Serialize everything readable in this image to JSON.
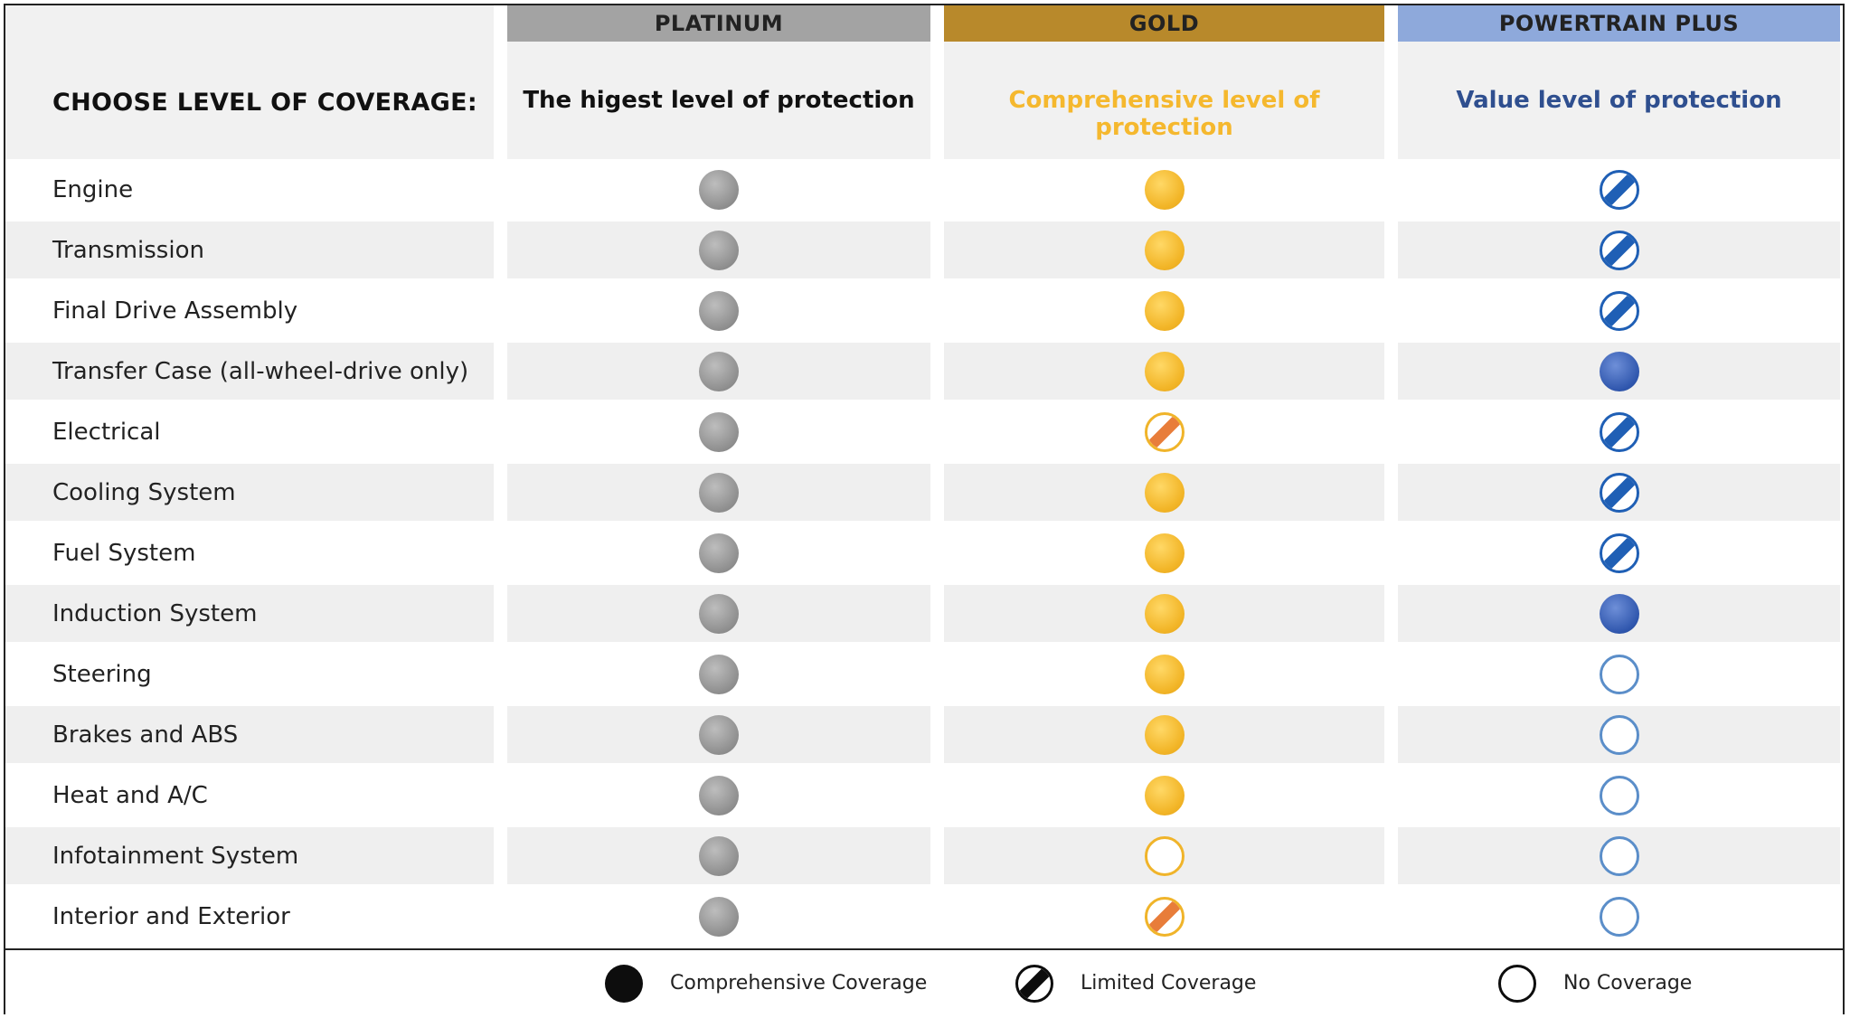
{
  "header": {
    "choose_label": "CHOOSE LEVEL OF COVERAGE:",
    "plans": [
      {
        "name": "PLATINUM",
        "tagline": "The higest level of protection",
        "bar_color": "#a3a3a3",
        "tag_color": "#111111"
      },
      {
        "name": "GOLD",
        "tagline": "Comprehensive level of protection",
        "bar_color": "#b8892b",
        "tag_color": "#f5b82e"
      },
      {
        "name": "POWERTRAIN PLUS",
        "tagline": "Value level of protection",
        "bar_color": "#8ea9db",
        "tag_color": "#2f4f8f"
      }
    ]
  },
  "rows": [
    {
      "label": "Engine",
      "coverage": [
        "comprehensive",
        "comprehensive",
        "limited"
      ]
    },
    {
      "label": "Transmission",
      "coverage": [
        "comprehensive",
        "comprehensive",
        "limited"
      ]
    },
    {
      "label": "Final Drive Assembly",
      "coverage": [
        "comprehensive",
        "comprehensive",
        "limited"
      ]
    },
    {
      "label": "Transfer Case (all-wheel-drive only)",
      "coverage": [
        "comprehensive",
        "comprehensive",
        "comprehensive"
      ]
    },
    {
      "label": "Electrical",
      "coverage": [
        "comprehensive",
        "limited",
        "limited"
      ]
    },
    {
      "label": "Cooling System",
      "coverage": [
        "comprehensive",
        "comprehensive",
        "limited"
      ]
    },
    {
      "label": "Fuel System",
      "coverage": [
        "comprehensive",
        "comprehensive",
        "limited"
      ]
    },
    {
      "label": "Induction System",
      "coverage": [
        "comprehensive",
        "comprehensive",
        "comprehensive"
      ]
    },
    {
      "label": "Steering",
      "coverage": [
        "comprehensive",
        "comprehensive",
        "none"
      ]
    },
    {
      "label": "Brakes and ABS",
      "coverage": [
        "comprehensive",
        "comprehensive",
        "none"
      ]
    },
    {
      "label": "Heat and A/C",
      "coverage": [
        "comprehensive",
        "comprehensive",
        "none"
      ]
    },
    {
      "label": "Infotainment System",
      "coverage": [
        "comprehensive",
        "none",
        "none"
      ]
    },
    {
      "label": "Interior and Exterior",
      "coverage": [
        "comprehensive",
        "limited",
        "none"
      ]
    }
  ],
  "legend": {
    "comprehensive": "Comprehensive Coverage",
    "limited": "Limited Coverage",
    "none": "No Coverage"
  }
}
